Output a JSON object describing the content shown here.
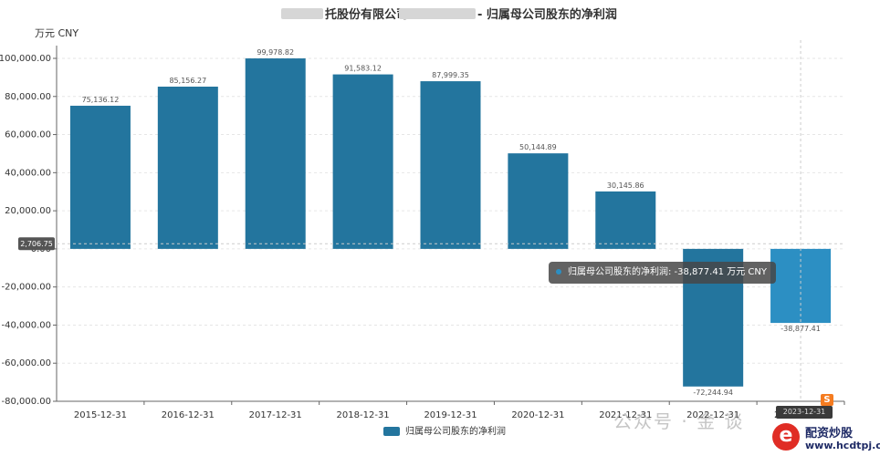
{
  "chart_data": {
    "type": "bar",
    "title_left": "托股份有限公司",
    "title_right": "- 归属母公司股东的净利润",
    "unit_label": "万元  CNY",
    "categories": [
      "2015-12-31",
      "2016-12-31",
      "2017-12-31",
      "2018-12-31",
      "2019-12-31",
      "2020-12-31",
      "2021-12-31",
      "2022-12-31",
      "2023-12-31"
    ],
    "values": [
      75136.12,
      85156.27,
      99978.82,
      91583.12,
      87999.35,
      50144.89,
      30145.86,
      -72244.94,
      -38877.41
    ],
    "value_labels": [
      "75,136.12",
      "85,156.27",
      "99,978.82",
      "91,583.12",
      "87,999.35",
      "50,144.89",
      "30,145.86",
      "-72,244.94",
      "-38,877.41"
    ],
    "y_ticks": [
      100000,
      80000,
      60000,
      40000,
      20000,
      0,
      -20000,
      -40000,
      -60000,
      -80000
    ],
    "y_tick_labels": [
      "100,000.00",
      "80,000.00",
      "60,000.00",
      "40,000.00",
      "20,000.00",
      "0.00",
      "-20,000.00",
      "-40,000.00",
      "-60,000.00",
      "-80,000.00"
    ],
    "ylim": [
      -80000,
      100000
    ],
    "grid": true,
    "legend": {
      "position": "bottom-center",
      "label": "归属母公司股东的净利润"
    },
    "colors": {
      "bar": "#23759e",
      "bar_highlight": "#2c8fc3"
    },
    "crosshair_value_label": "2,706.75",
    "crosshair_category_label": "2023-12-31",
    "highlight_index": 8
  },
  "tooltip": {
    "text": "归属母公司股东的净利润: -38,877.41  万元  CNY"
  },
  "watermark": "公众号 · 金  谈",
  "logo": {
    "badge": "e",
    "brand": "配资炒股",
    "site": "www.hcdtpj.com"
  },
  "s_icon": "S"
}
